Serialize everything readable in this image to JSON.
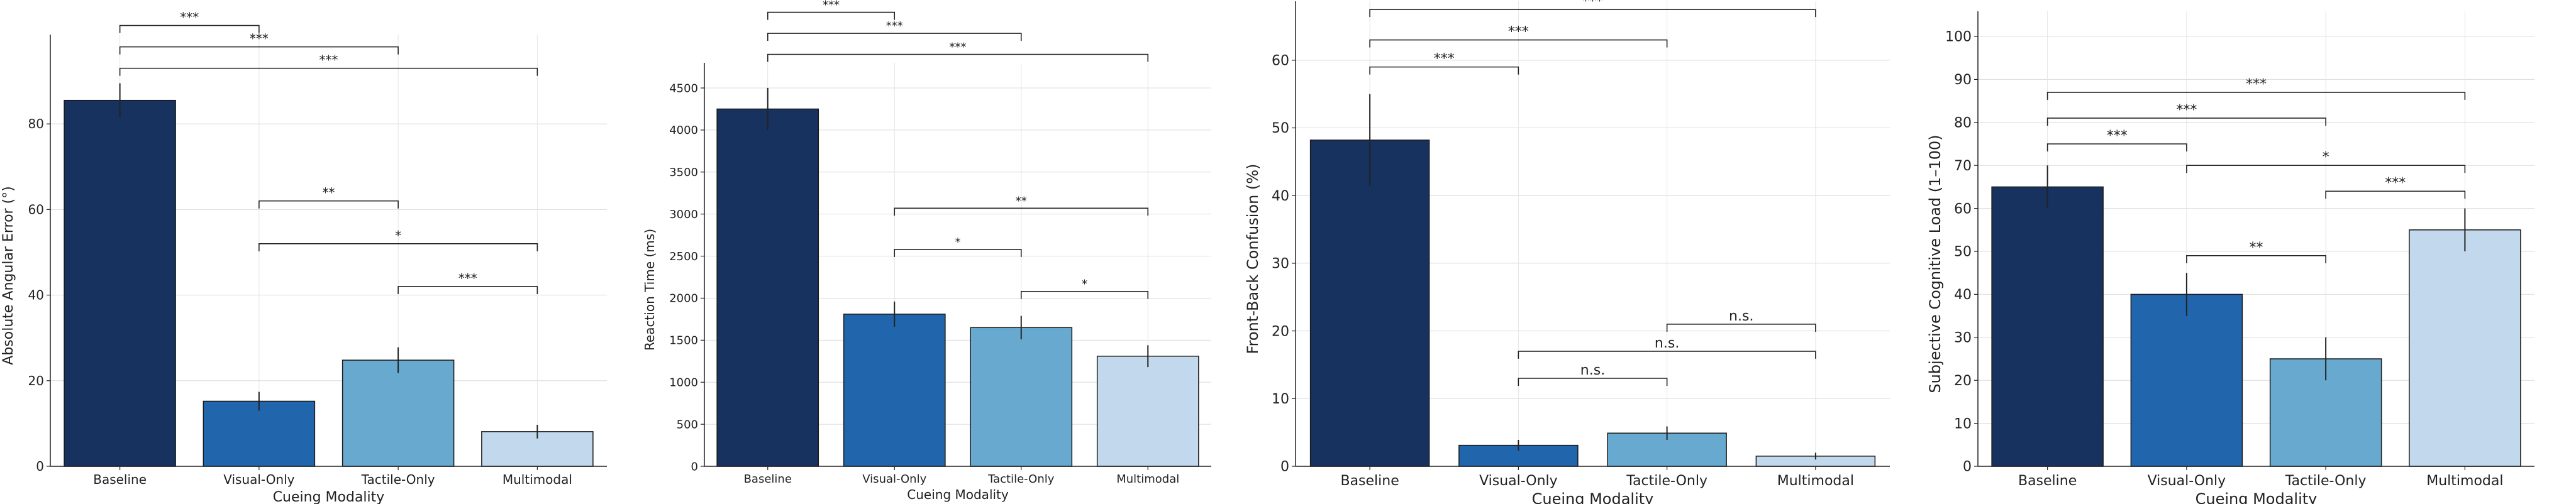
{
  "chart_data": [
    {
      "type": "bar",
      "categories": [
        "Baseline",
        "Visual-Only",
        "Tactile-Only",
        "Multimodal"
      ],
      "values": [
        85.5,
        15.2,
        24.8,
        8.1
      ],
      "errors": [
        4.0,
        2.2,
        3.0,
        1.6
      ],
      "xlabel": "Cueing Modality",
      "ylabel": "Absolute Angular Error (°)",
      "ylim": [
        0,
        95
      ],
      "yticks": [
        "0",
        "20",
        "40",
        "60",
        "80"
      ],
      "ytick_values": [
        0,
        20,
        40,
        60,
        80
      ],
      "grid": true,
      "colors": [
        "#17325f",
        "#2166ac",
        "#67a9cf",
        "#c2d8ec"
      ],
      "significance": [
        {
          "from": 0,
          "to": 1,
          "y": 103,
          "label": "***"
        },
        {
          "from": 0,
          "to": 2,
          "y": 98,
          "label": "***"
        },
        {
          "from": 0,
          "to": 3,
          "y": 93,
          "label": "***"
        },
        {
          "from": 1,
          "to": 2,
          "y": 62,
          "label": "**"
        },
        {
          "from": 1,
          "to": 3,
          "y": 52,
          "label": "*"
        },
        {
          "from": 2,
          "to": 3,
          "y": 42,
          "label": "***"
        }
      ]
    },
    {
      "type": "bar",
      "categories": [
        "Baseline",
        "Visual-Only",
        "Tactile-Only",
        "Multimodal"
      ],
      "values": [
        4250,
        1810,
        1650,
        1310
      ],
      "errors": [
        250,
        150,
        140,
        130
      ],
      "xlabel": "Cueing Modality",
      "ylabel": "Reaction Time (ms)",
      "ylim": [
        0,
        4550
      ],
      "yticks": [
        "0",
        "500",
        "1000",
        "1500",
        "2000",
        "2500",
        "3000",
        "3500",
        "4000",
        "4500"
      ],
      "ytick_values": [
        0,
        500,
        1000,
        1500,
        2000,
        2500,
        3000,
        3500,
        4000,
        4500
      ],
      "grid": true,
      "colors": [
        "#17325f",
        "#2166ac",
        "#67a9cf",
        "#c2d8ec"
      ],
      "significance": [
        {
          "from": 0,
          "to": 1,
          "y": 5400,
          "label": "***"
        },
        {
          "from": 0,
          "to": 2,
          "y": 5150,
          "label": "***"
        },
        {
          "from": 0,
          "to": 3,
          "y": 4900,
          "label": "***"
        },
        {
          "from": 1,
          "to": 3,
          "y": 3070,
          "label": "**"
        },
        {
          "from": 1,
          "to": 2,
          "y": 2580,
          "label": "*"
        },
        {
          "from": 2,
          "to": 3,
          "y": 2080,
          "label": "*"
        }
      ]
    },
    {
      "type": "bar",
      "categories": [
        "Baseline",
        "Visual-Only",
        "Tactile-Only",
        "Multimodal"
      ],
      "values": [
        48.2,
        3.1,
        4.9,
        1.5
      ],
      "errors": [
        6.8,
        0.8,
        1.0,
        0.5
      ],
      "xlabel": "Cueing Modality",
      "ylabel": "Front-Back Confusion (%)",
      "ylim": [
        0,
        65
      ],
      "yticks": [
        "0",
        "10",
        "20",
        "30",
        "40",
        "50",
        "60"
      ],
      "ytick_values": [
        0,
        10,
        20,
        30,
        40,
        50,
        60
      ],
      "grid": true,
      "colors": [
        "#17325f",
        "#2166ac",
        "#67a9cf",
        "#c2d8ec"
      ],
      "significance": [
        {
          "from": 0,
          "to": 3,
          "y": 67.5,
          "label": "***"
        },
        {
          "from": 0,
          "to": 2,
          "y": 63,
          "label": "***"
        },
        {
          "from": 0,
          "to": 1,
          "y": 59,
          "label": "***"
        },
        {
          "from": 2,
          "to": 3,
          "y": 21,
          "label": "n.s."
        },
        {
          "from": 1,
          "to": 3,
          "y": 17,
          "label": "n.s."
        },
        {
          "from": 1,
          "to": 2,
          "y": 13,
          "label": "n.s."
        }
      ]
    },
    {
      "type": "bar",
      "categories": [
        "Baseline",
        "Visual-Only",
        "Tactile-Only",
        "Multimodal"
      ],
      "values": [
        65,
        40,
        25,
        55
      ],
      "errors": [
        5,
        5,
        5,
        5
      ],
      "xlabel": "Cueing Modality",
      "ylabel": "Subjective Cognitive Load (1–100)",
      "ylim": [
        0,
        100
      ],
      "yticks": [
        "0",
        "10",
        "20",
        "30",
        "40",
        "50",
        "60",
        "70",
        "80",
        "90",
        "100"
      ],
      "ytick_values": [
        0,
        10,
        20,
        30,
        40,
        50,
        60,
        70,
        80,
        90,
        100
      ],
      "grid": true,
      "colors": [
        "#17325f",
        "#2166ac",
        "#67a9cf",
        "#c2d8ec"
      ],
      "significance": [
        {
          "from": 0,
          "to": 3,
          "y": 87,
          "label": "***"
        },
        {
          "from": 0,
          "to": 2,
          "y": 81,
          "label": "***"
        },
        {
          "from": 0,
          "to": 1,
          "y": 75,
          "label": "***"
        },
        {
          "from": 1,
          "to": 3,
          "y": 70,
          "label": "*"
        },
        {
          "from": 2,
          "to": 3,
          "y": 64,
          "label": "***"
        },
        {
          "from": 1,
          "to": 2,
          "y": 49,
          "label": "**"
        }
      ]
    }
  ]
}
